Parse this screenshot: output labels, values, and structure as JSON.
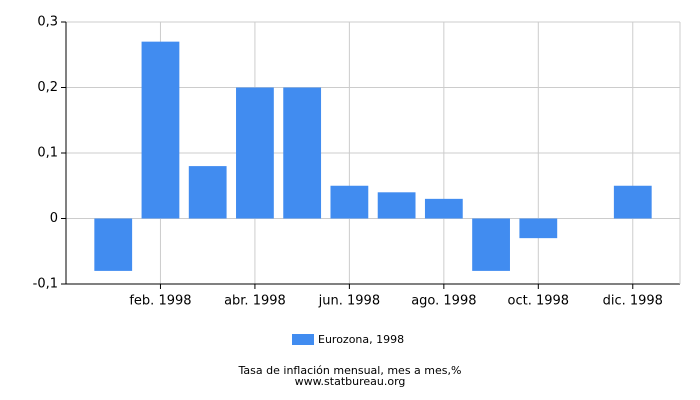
{
  "chart_data": {
    "type": "bar",
    "categories": [
      null,
      "feb. 1998",
      null,
      "abr. 1998",
      null,
      "jun. 1998",
      null,
      "ago. 1998",
      null,
      "oct. 1998",
      null,
      "dic. 1998"
    ],
    "series": [
      {
        "name": "Eurozona, 1998",
        "color": "#418cf0",
        "values": [
          -0.08,
          0.27,
          0.08,
          0.2,
          0.2,
          0.05,
          0.04,
          0.03,
          -0.08,
          -0.03,
          0,
          0.05
        ]
      }
    ],
    "ylim": [
      -0.1,
      0.3
    ],
    "yticks": [
      {
        "value": -0.1,
        "label": "-0,1"
      },
      0,
      {
        "value": 0.1,
        "label": "0,1"
      },
      {
        "value": 0.2,
        "label": "0,2"
      },
      {
        "value": 0.3,
        "label": "0,3"
      }
    ],
    "grid": true,
    "title": "Tasa de inflación mensual, mes a mes,%",
    "source": "www.statbureau.org"
  }
}
